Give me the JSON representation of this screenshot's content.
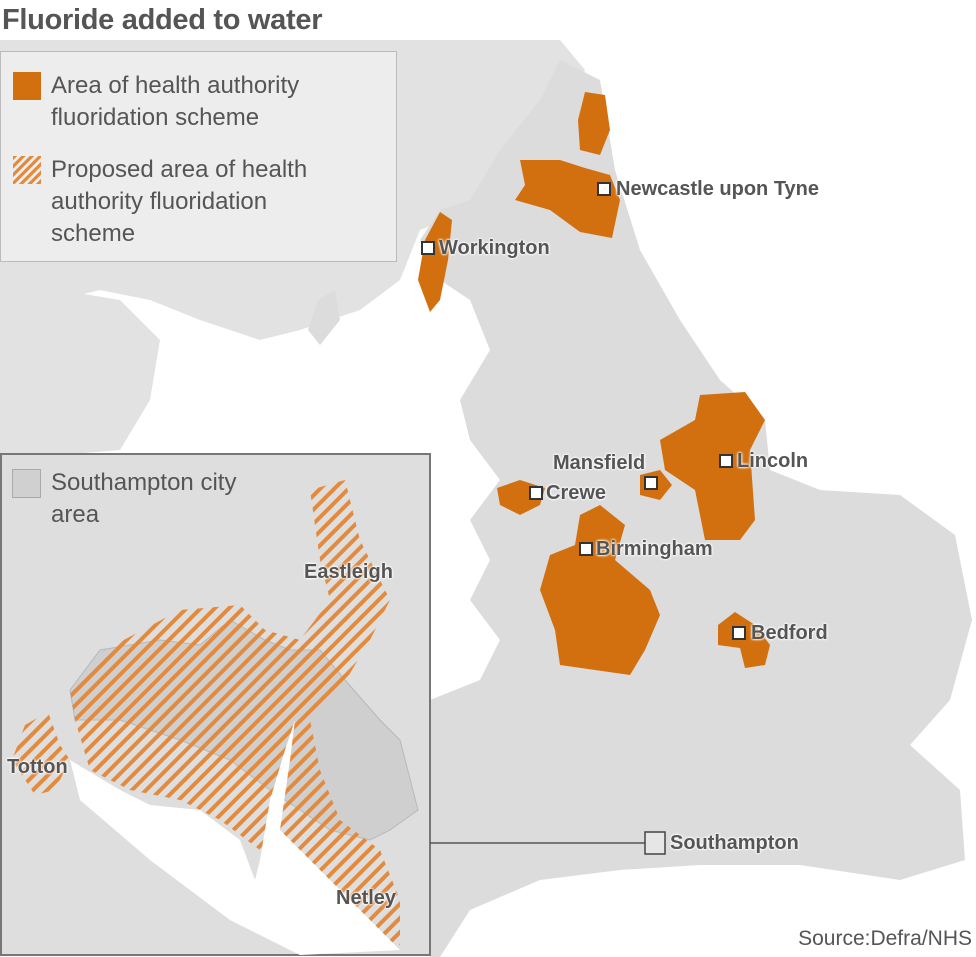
{
  "title": "Fluoride added to water",
  "legend": {
    "items": [
      {
        "label": "Area of health authority fluoridation scheme",
        "style": "solid",
        "color": "#d2700f"
      },
      {
        "label": "Proposed area of health authority fluoridation scheme",
        "style": "hatched",
        "color": "#e38a3c"
      }
    ]
  },
  "inset": {
    "legend_label": "Southampton city area",
    "legend_color": "#d0d0d0",
    "places": [
      "Eastleigh",
      "Totton",
      "Netley"
    ]
  },
  "places": [
    "Newcastle upon Tyne",
    "Workington",
    "Mansfield",
    "Lincoln",
    "Crewe",
    "Birmingham",
    "Bedford",
    "Southampton"
  ],
  "colors": {
    "land": "#dcdcdc",
    "sea": "#ffffff",
    "scheme": "#d2700f",
    "proposed": "#e38a3c",
    "text": "#555555"
  },
  "source": "Source:Defra/NHS"
}
